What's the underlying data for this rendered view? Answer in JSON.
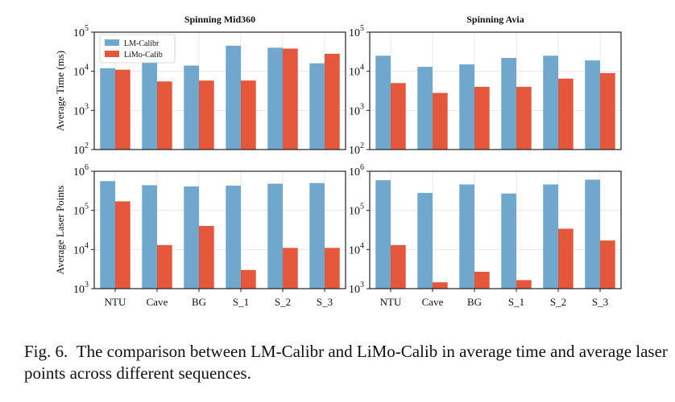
{
  "colors": {
    "lm": "#6fa8cc",
    "limo": "#e5573a",
    "grid": "#e4e4e4"
  },
  "legend": [
    "LM-Calibr",
    "LiMo-Calib"
  ],
  "caption": {
    "prefix": "Fig. 6.",
    "text": "The comparison between LM-Calibr and LiMo-Calib in average time and average laser points across different sequences."
  },
  "chart_data": [
    {
      "type": "bar",
      "panel": "top-left",
      "yscale": "log",
      "title": "Spinning Mid360",
      "ylabel": "Average Time (ms)",
      "ylim": [
        100,
        100000
      ],
      "ytick_exponents": [
        2,
        3,
        4,
        5
      ],
      "categories": [
        "NTU",
        "Cave",
        "BG",
        "S_1",
        "S_2",
        "S_3"
      ],
      "show_xticks": false,
      "legend": "top-left",
      "series": [
        {
          "name": "LM-Calibr",
          "values": [
            12000,
            28000,
            14000,
            45000,
            40000,
            16000
          ]
        },
        {
          "name": "LiMo-Calib",
          "values": [
            11000,
            5500,
            5800,
            5800,
            38000,
            28000
          ]
        }
      ]
    },
    {
      "type": "bar",
      "panel": "top-right",
      "yscale": "log",
      "title": "Spinning Avia",
      "ylabel": "",
      "ylim": [
        100,
        100000
      ],
      "ytick_exponents": [
        2,
        3,
        4,
        5
      ],
      "categories": [
        "NTU",
        "Cave",
        "BG",
        "S_1",
        "S_2",
        "S_3"
      ],
      "show_xticks": false,
      "series": [
        {
          "name": "LM-Calibr",
          "values": [
            25000,
            13000,
            15000,
            22000,
            25000,
            19000
          ]
        },
        {
          "name": "LiMo-Calib",
          "values": [
            5000,
            2800,
            4000,
            4000,
            6500,
            9000
          ]
        }
      ]
    },
    {
      "type": "bar",
      "panel": "bottom-left",
      "yscale": "log",
      "title": "",
      "ylabel": "Average Laser Points",
      "ylim": [
        1000,
        1000000
      ],
      "ytick_exponents": [
        3,
        4,
        5,
        6
      ],
      "categories": [
        "NTU",
        "Cave",
        "BG",
        "S_1",
        "S_2",
        "S_3"
      ],
      "show_xticks": true,
      "series": [
        {
          "name": "LM-Calibr",
          "values": [
            560000,
            440000,
            410000,
            430000,
            480000,
            500000
          ]
        },
        {
          "name": "LiMo-Calib",
          "values": [
            170000,
            13000,
            40000,
            3000,
            11000,
            11000
          ]
        }
      ]
    },
    {
      "type": "bar",
      "panel": "bottom-right",
      "yscale": "log",
      "title": "",
      "ylabel": "",
      "ylim": [
        1000,
        1000000
      ],
      "ytick_exponents": [
        3,
        4,
        5,
        6
      ],
      "categories": [
        "NTU",
        "Cave",
        "BG",
        "S_1",
        "S_2",
        "S_3"
      ],
      "show_xticks": true,
      "series": [
        {
          "name": "LM-Calibr",
          "values": [
            590000,
            280000,
            460000,
            270000,
            460000,
            610000
          ]
        },
        {
          "name": "LiMo-Calib",
          "values": [
            13000,
            1450,
            2700,
            1650,
            34000,
            17000
          ]
        }
      ]
    }
  ]
}
